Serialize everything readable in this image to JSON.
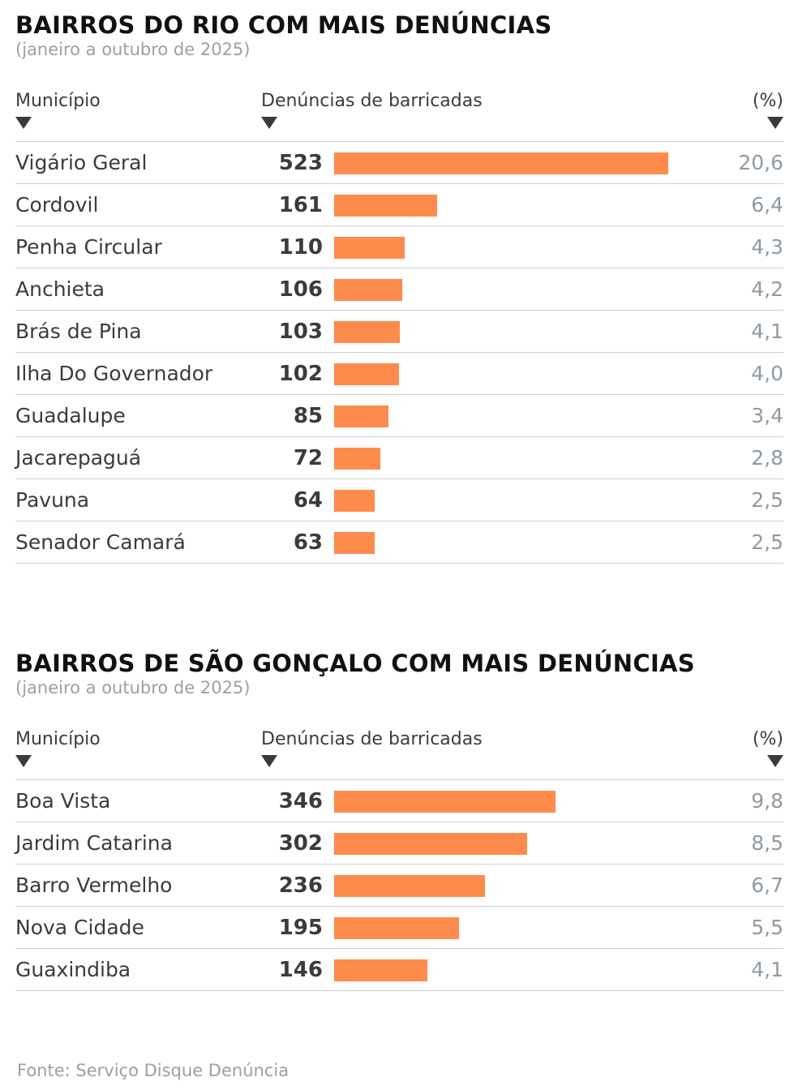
{
  "source": "Fonte: Serviço Disque Denúncia",
  "colors": {
    "bar": "#fd8b4c",
    "percent_text": "#8f9aa3"
  },
  "chart_data": [
    {
      "type": "bar",
      "title": "BAIRROS DO RIO COM MAIS DENÚNCIAS",
      "subtitle": "(janeiro a outubro de 2025)",
      "headers": {
        "name": "Município",
        "value": "Denúncias de barricadas",
        "percent": "(%)"
      },
      "xlim": [
        0,
        523
      ],
      "rows": [
        {
          "name": "Vigário Geral",
          "value": 523,
          "value_label": "523",
          "percent": "20,6"
        },
        {
          "name": "Cordovil",
          "value": 161,
          "value_label": "161",
          "percent": "6,4"
        },
        {
          "name": "Penha Circular",
          "value": 110,
          "value_label": "110",
          "percent": "4,3"
        },
        {
          "name": "Anchieta",
          "value": 106,
          "value_label": "106",
          "percent": "4,2"
        },
        {
          "name": "Brás de Pina",
          "value": 103,
          "value_label": "103",
          "percent": "4,1"
        },
        {
          "name": "Ilha Do Governador",
          "value": 102,
          "value_label": "102",
          "percent": "4,0"
        },
        {
          "name": "Guadalupe",
          "value": 85,
          "value_label": "85",
          "percent": "3,4"
        },
        {
          "name": "Jacarepaguá",
          "value": 72,
          "value_label": "72",
          "percent": "2,8"
        },
        {
          "name": "Pavuna",
          "value": 64,
          "value_label": "64",
          "percent": "2,5"
        },
        {
          "name": "Senador Camará",
          "value": 63,
          "value_label": "63",
          "percent": "2,5"
        }
      ]
    },
    {
      "type": "bar",
      "title": "BAIRROS DE SÃO GONÇALO COM MAIS DENÚNCIAS",
      "subtitle": "(janeiro a outubro de 2025)",
      "headers": {
        "name": "Município",
        "value": "Denúncias de barricadas",
        "percent": "(%)"
      },
      "xlim": [
        0,
        523
      ],
      "rows": [
        {
          "name": "Boa Vista",
          "value": 346,
          "value_label": "346",
          "percent": "9,8"
        },
        {
          "name": "Jardim Catarina",
          "value": 302,
          "value_label": "302",
          "percent": "8,5"
        },
        {
          "name": "Barro Vermelho",
          "value": 236,
          "value_label": "236",
          "percent": "6,7"
        },
        {
          "name": "Nova Cidade",
          "value": 195,
          "value_label": "195",
          "percent": "5,5"
        },
        {
          "name": "Guaxindiba",
          "value": 146,
          "value_label": "146",
          "percent": "4,1"
        }
      ]
    }
  ]
}
